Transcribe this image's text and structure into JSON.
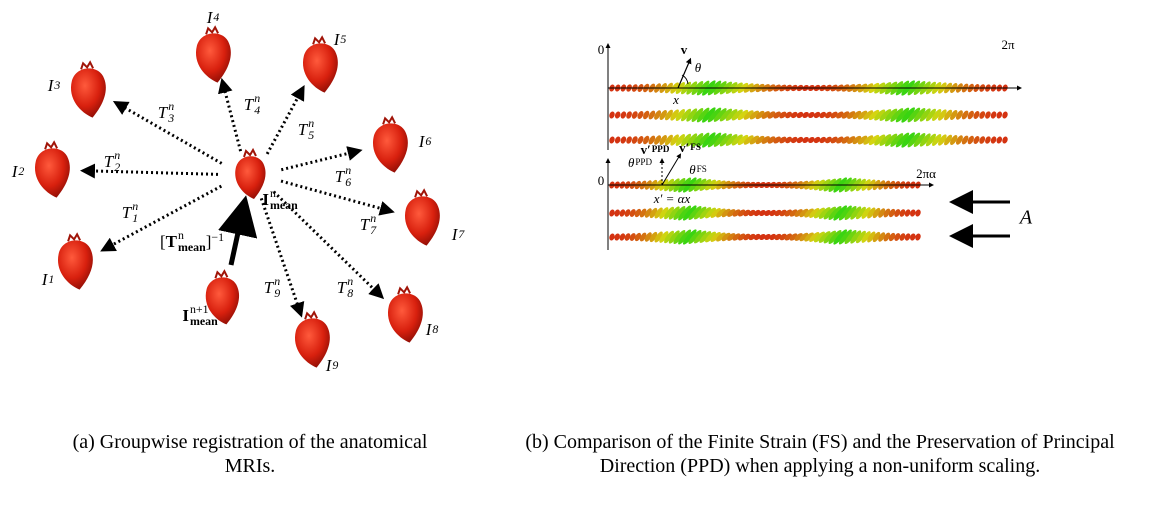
{
  "panel_a": {
    "images": [
      {
        "base": "I",
        "sub": "1"
      },
      {
        "base": "I",
        "sub": "2"
      },
      {
        "base": "I",
        "sub": "3"
      },
      {
        "base": "I",
        "sub": "4"
      },
      {
        "base": "I",
        "sub": "5"
      },
      {
        "base": "I",
        "sub": "6"
      },
      {
        "base": "I",
        "sub": "7"
      },
      {
        "base": "I",
        "sub": "8"
      },
      {
        "base": "I",
        "sub": "9"
      }
    ],
    "transforms": [
      {
        "base": "T",
        "sup": "n",
        "sub": "1"
      },
      {
        "base": "T",
        "sup": "n",
        "sub": "2"
      },
      {
        "base": "T",
        "sup": "n",
        "sub": "3"
      },
      {
        "base": "T",
        "sup": "n",
        "sub": "4"
      },
      {
        "base": "T",
        "sup": "n",
        "sub": "5"
      },
      {
        "base": "T",
        "sup": "n",
        "sub": "6"
      },
      {
        "base": "T",
        "sup": "n",
        "sub": "7"
      },
      {
        "base": "T",
        "sup": "n",
        "sub": "8"
      },
      {
        "base": "T",
        "sup": "n",
        "sub": "9"
      }
    ],
    "mean": {
      "base": "I",
      "sup": "n",
      "sub": "mean"
    },
    "next_mean": {
      "base": "I",
      "sup": "n+1",
      "sub": "mean"
    },
    "inverse": {
      "open": "[",
      "base": "T",
      "sup": "n",
      "sub": "mean",
      "close": "]",
      "power": "−1"
    },
    "caption": "(a) Groupwise registration of the anatomical MRIs."
  },
  "panel_b": {
    "top": {
      "origin": "0",
      "end": "2π",
      "vector": {
        "base": "v"
      },
      "angle": {
        "base": "θ"
      },
      "position": {
        "base": "x"
      }
    },
    "bottom": {
      "origin": "0",
      "end": "2πα",
      "vector_ppd": {
        "base": "v′",
        "sub": "PPD"
      },
      "vector_fs": {
        "base": "v′",
        "sub": "FS"
      },
      "angle_ppd": {
        "base": "θ",
        "sub": "PPD"
      },
      "angle_fs": {
        "base": "θ",
        "sub": "FS"
      },
      "position": {
        "base": "x′ = αx"
      }
    },
    "arrow_label": "A",
    "caption": "(b) Comparison of the Finite Strain (FS) and the Preservation of Principal Direction (PPD) when applying a non-uniform scaling."
  }
}
